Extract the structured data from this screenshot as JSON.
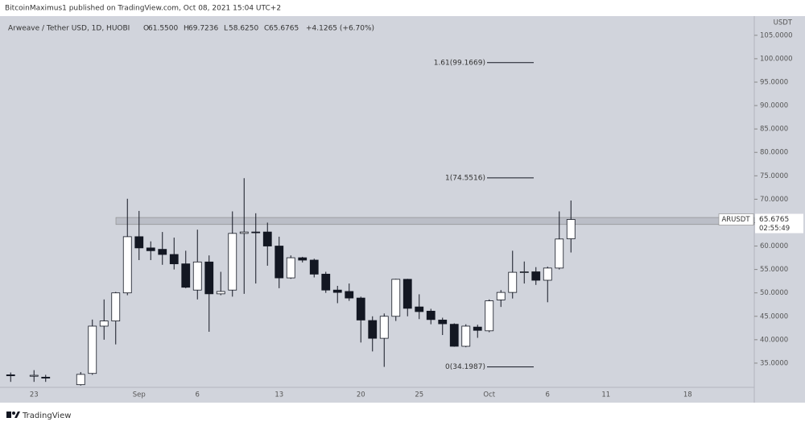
{
  "header": "BitcoinMaximus1 published on TradingView.com, Oct 08, 2021 15:04 UTC+2",
  "footer": "TradingView",
  "chart_data": {
    "type": "candlestick",
    "title": "Arweave / Tether USD, 1D, HUOBI",
    "ohlc_legend": [
      {
        "key": "O",
        "text": "61.5500"
      },
      {
        "key": "H",
        "text": "69.7236"
      },
      {
        "key": "L",
        "text": "58.6250"
      },
      {
        "key": "C",
        "text": "65.6765"
      }
    ],
    "change": "+4.1265 (+6.70%)",
    "y_axis_label": "USDT",
    "categories": [
      null,
      null,
      "23",
      null,
      null,
      null,
      null,
      null,
      null,
      null,
      null,
      "Sep",
      null,
      null,
      null,
      null,
      "6",
      null,
      null,
      null,
      null,
      null,
      null,
      "13",
      null,
      null,
      null,
      null,
      null,
      null,
      "20",
      null,
      null,
      null,
      null,
      "25",
      null,
      null,
      null,
      null,
      null,
      "Oct",
      null,
      null,
      null,
      null,
      "6",
      null,
      null,
      null,
      null,
      "11",
      null,
      null,
      null,
      null,
      null,
      null,
      "18",
      null,
      null,
      null,
      null,
      null
    ],
    "open": [
      32.5,
      null,
      32.2,
      32,
      null,
      null,
      30.4,
      32.8,
      42.9,
      44,
      50,
      62,
      59.6,
      59.3,
      58.2,
      56.2,
      50.6,
      56.6,
      49.8,
      50.6,
      62.7,
      63,
      63,
      60,
      53.2,
      57.5,
      57,
      54,
      50.6,
      50.3,
      48.9,
      44.1,
      40.3,
      45,
      52.9,
      47,
      46.1,
      44.2,
      43.3,
      38.6,
      42.7,
      41.9,
      48.5,
      50.1,
      54.4,
      54.5,
      52.7,
      55.3,
      61.55,
      null,
      null,
      null,
      null,
      null,
      null,
      null,
      null,
      null,
      null,
      null,
      null,
      null,
      null,
      null
    ],
    "high": [
      33,
      null,
      33.5,
      32.5,
      null,
      null,
      33.1,
      44.3,
      48.6,
      50.2,
      70.1,
      67.5,
      61,
      63,
      61.8,
      59,
      63.5,
      58,
      54.5,
      67.4,
      74.5,
      67,
      65,
      62,
      58,
      57.7,
      57.3,
      54.5,
      51.5,
      52,
      49.2,
      45,
      45.6,
      53,
      53,
      49.7,
      46.6,
      44.7,
      43.5,
      43.3,
      43.2,
      48.6,
      50.6,
      59,
      56.7,
      55.5,
      55.6,
      67.4,
      69.7236,
      null,
      null,
      null,
      null,
      null,
      null,
      null,
      null,
      null,
      null,
      null,
      null,
      null,
      null,
      null
    ],
    "low": [
      31,
      null,
      31,
      31,
      null,
      null,
      30.2,
      32.5,
      40,
      39,
      49.5,
      57,
      57,
      56,
      55,
      51,
      48.6,
      41.7,
      49.5,
      49.2,
      49.8,
      52,
      55.8,
      51,
      53,
      56.5,
      53.3,
      50,
      47.8,
      48.3,
      39.4,
      37.5,
      34.2,
      44,
      45,
      44.4,
      43.3,
      41,
      38.5,
      38.4,
      40.4,
      41.6,
      47,
      48.8,
      52,
      51.7,
      48,
      55,
      58.625,
      null,
      null,
      null,
      null,
      null,
      null,
      null,
      null,
      null,
      null,
      null,
      null,
      null,
      null,
      null
    ],
    "close": [
      32.3,
      null,
      32.4,
      31.8,
      null,
      null,
      32.6,
      42.9,
      44,
      50,
      62,
      59.6,
      59,
      58.2,
      56.2,
      51.2,
      56.6,
      49.8,
      50.3,
      62.7,
      63,
      62.9,
      60,
      53.2,
      57.5,
      57,
      54,
      50.6,
      50.1,
      48.9,
      44.2,
      40.3,
      45,
      52.9,
      46.7,
      46,
      44.3,
      43.4,
      38.6,
      42.9,
      42,
      48.3,
      50.1,
      54.4,
      54.5,
      52.7,
      55.3,
      61.5,
      65.6765,
      null,
      null,
      null,
      null,
      null,
      null,
      null,
      null,
      null,
      null,
      null,
      null,
      null,
      null,
      null
    ],
    "up_color": "#ffffff",
    "down_color": "#131722",
    "ylim": [
      30,
      109.1
    ],
    "yticks": [
      {
        "value": 35,
        "label": "35.0000"
      },
      {
        "value": 40,
        "label": "40.0000"
      },
      {
        "value": 45,
        "label": "45.0000"
      },
      {
        "value": 50,
        "label": "50.0000"
      },
      {
        "value": 55,
        "label": "55.0000"
      },
      {
        "value": 60,
        "label": "60.0000"
      },
      {
        "value": 65,
        "label": "65.0000"
      },
      {
        "value": 70,
        "label": "70.0000"
      },
      {
        "value": 75,
        "label": "75.0000"
      },
      {
        "value": 80,
        "label": "80.0000"
      },
      {
        "value": 85,
        "label": "85.0000"
      },
      {
        "value": 90,
        "label": "90.0000"
      },
      {
        "value": 95,
        "label": "95.0000"
      },
      {
        "value": 100,
        "label": "100.0000"
      },
      {
        "value": 105,
        "label": "105.0000"
      }
    ],
    "levels": [
      {
        "label": "1.61(99.1669)",
        "value": 99.1669
      },
      {
        "label": "1(74.5516)",
        "value": 74.5516
      },
      {
        "label": "0(34.1987)",
        "value": 34.1987
      }
    ],
    "zone": [
      64.6,
      66.1
    ],
    "last_price": {
      "symbol": "ARUSDT",
      "value": 65.6765,
      "countdown": "02:55:49"
    }
  }
}
